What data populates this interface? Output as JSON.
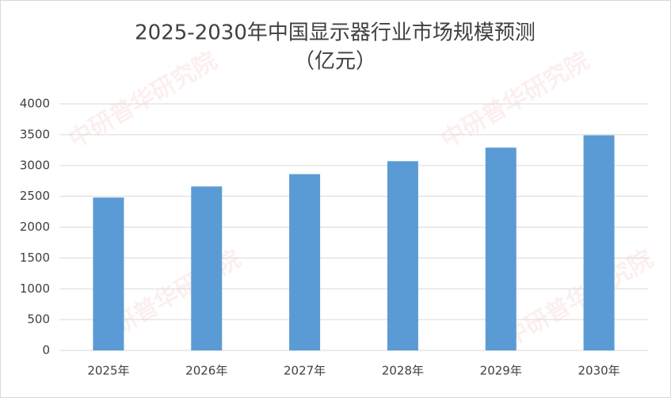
{
  "chart_data": {
    "type": "bar",
    "title": "2025-2030年中国显示器行业市场规模预测",
    "subtitle": "（亿元）",
    "watermark": "中研普华研究院",
    "categories": [
      "2025年",
      "2026年",
      "2027年",
      "2028年",
      "2029年",
      "2030年"
    ],
    "values": [
      2480,
      2660,
      2860,
      3070,
      3290,
      3490
    ],
    "color": "#5b9bd5",
    "ylim": [
      0,
      4000
    ],
    "yticks": [
      0,
      500,
      1000,
      1500,
      2000,
      2500,
      3000,
      3500,
      4000
    ],
    "grid": true
  }
}
